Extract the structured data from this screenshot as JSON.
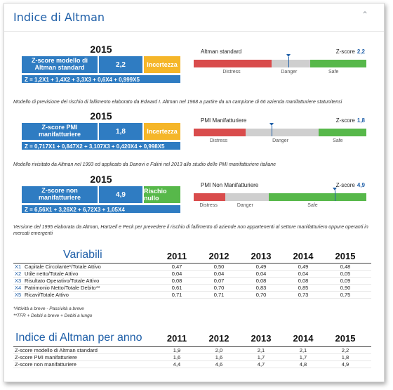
{
  "header": {
    "title": "Indice di Altman",
    "collapse_icon": "chevron-up-icon"
  },
  "scores": [
    {
      "year": "2015",
      "label": "Z-score modello di Altman standard",
      "value": "2,2",
      "status": "Incertezza",
      "status_color": "#f5b629",
      "formula": "Z = 1,2X1 + 1,4X2 + 3,3X3 + 0,6X4 + 0,999X5",
      "gauge": {
        "name": "Altman standard",
        "zscore_label": "Z-score",
        "zscore": "2,2",
        "value": 2.2,
        "min": 0,
        "max": 4,
        "zones": [
          {
            "label": "Distress",
            "from": 0,
            "to": 1.8,
            "color": "#d94c4c"
          },
          {
            "label": "Danger",
            "from": 1.8,
            "to": 2.7,
            "color": "#cfcfcf"
          },
          {
            "label": "Safe",
            "from": 2.7,
            "to": 4,
            "color": "#57b84a"
          }
        ]
      },
      "note": "Modello di previsione del rischio di fallimento elaborato da Edward I. Altman nel 1968 a partire da un campione di 66 azienda manifatturiere statunitensi"
    },
    {
      "year": "2015",
      "label": "Z-score PMI manifatturiere",
      "value": "1,8",
      "status": "Incertezza",
      "status_color": "#f5b629",
      "formula": "Z = 0,717X1 + 0,847X2 + 3,107X3 + 0,420X4 + 0,998X5",
      "gauge": {
        "name": "PMI Manifatturiere",
        "zscore_label": "Z-score",
        "zscore": "1,8",
        "value": 1.8,
        "min": 0,
        "max": 4,
        "zones": [
          {
            "label": "Distress",
            "from": 0,
            "to": 1.2,
            "color": "#d94c4c"
          },
          {
            "label": "Danger",
            "from": 1.2,
            "to": 2.9,
            "color": "#cfcfcf"
          },
          {
            "label": "Safe",
            "from": 2.9,
            "to": 4,
            "color": "#57b84a"
          }
        ]
      },
      "note": "Modello rivisitato da Altman nel 1993 ed applicato da Danovi e Falini nel 2013 allo studio delle PMI manifatturiere italiane"
    },
    {
      "year": "2015",
      "label": "Z-score non manifatturiere",
      "value": "4,9",
      "status": "Rischio nullo",
      "status_color": "#57b84a",
      "formula": "Z = 6,56X1 + 3,26X2 + 6,72X3 + 1,05X4",
      "gauge": {
        "name": "PMI Non Manifatturiere",
        "zscore_label": "Z-score",
        "zscore": "4,9",
        "value": 4.9,
        "min": 0,
        "max": 6,
        "zones": [
          {
            "label": "Distress",
            "from": 0,
            "to": 1.1,
            "color": "#d94c4c"
          },
          {
            "label": "Danger",
            "from": 1.1,
            "to": 2.6,
            "color": "#cfcfcf"
          },
          {
            "label": "Safe",
            "from": 2.6,
            "to": 6,
            "color": "#57b84a"
          }
        ]
      },
      "note": "Versione del 1995 elaborata da Altman, Hartzell e Peck per prevedere il rischio di fallimento di aziende non appartenenti al settore manifatturiero oppure operanti in mercati emergenti"
    }
  ],
  "variables": {
    "title": "Variabili",
    "years": [
      "2011",
      "2012",
      "2013",
      "2014",
      "2015"
    ],
    "rows": [
      {
        "code": "X1",
        "name": "Capitale Circolante*/Totale Attivo",
        "values": [
          "0,47",
          "0,50",
          "0,49",
          "0,49",
          "0,48"
        ]
      },
      {
        "code": "X2",
        "name": "Utile netto/Totale Attivo",
        "values": [
          "0,04",
          "0,04",
          "0,04",
          "0,04",
          "0,05"
        ]
      },
      {
        "code": "X3",
        "name": "Risultato Operativo/Totale Attivo",
        "values": [
          "0,08",
          "0,07",
          "0,08",
          "0,08",
          "0,09"
        ]
      },
      {
        "code": "X4",
        "name": "Patrimonio Netto/Totale Debito**",
        "values": [
          "0,61",
          "0,70",
          "0,83",
          "0,85",
          "0,90"
        ]
      },
      {
        "code": "X5",
        "name": "Ricavi/Totale Attivo",
        "values": [
          "0,71",
          "0,71",
          "0,70",
          "0,73",
          "0,75"
        ]
      }
    ],
    "footnotes": [
      "*Attività a breve - Passività a breve",
      "**TFR + Debiti a breve + Debiti a lungo"
    ]
  },
  "index_by_year": {
    "title": "Indice di Altman per anno",
    "years": [
      "2011",
      "2012",
      "2013",
      "2014",
      "2015"
    ],
    "rows": [
      {
        "name": "Z-score modello di Altman standard",
        "values": [
          "1,9",
          "2,0",
          "2,1",
          "2,1",
          "2,2"
        ]
      },
      {
        "name": "Z-score PMI manifatturiere",
        "values": [
          "1,6",
          "1,6",
          "1,7",
          "1,7",
          "1,8"
        ]
      },
      {
        "name": "Z-score non manifatturiere",
        "values": [
          "4,4",
          "4,6",
          "4,7",
          "4,8",
          "4,9"
        ]
      }
    ]
  }
}
